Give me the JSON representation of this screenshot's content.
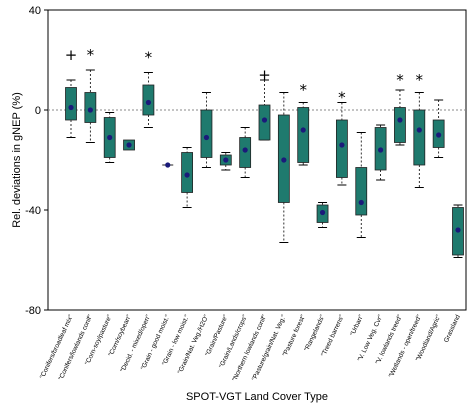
{
  "chart_data": {
    "type": "box",
    "xlabel": "SPOT-VGT Land Cover Type",
    "ylabel": "Rel. deviations in gNEP (%)",
    "ylim": [
      -80,
      40
    ],
    "yticks": [
      "40",
      "0",
      "-40",
      "-80"
    ],
    "zero_line": "dotted",
    "box_color": "#1f7a6e",
    "median_color": "#1a1a7a",
    "categories": [
      "\"Conifers/broadleaf mix\"",
      "\"Conifers/lowlands conif\"",
      "\"Corn-soy/pasture\"",
      "\"Corn/soybean\"",
      "\"Decid. - mixed/open\"",
      "\"Grain - good moist.\"",
      "\"Grain - low moist.\"",
      "\"Grain/Nat. Veg./H2O\"",
      "\"Grain/Pasture\"",
      "\"Grain/Lands/crops\"",
      "\"Northern lowlands conif\"",
      "\"Pasture/grain/Nat. Veg.\"",
      "\"Pasture forest\"",
      "\"Rangelands\"",
      "\"Treed barrens\"",
      "\"Urban\"",
      "\"V. Low Veg. Cvr\"",
      "\"V. lowlands treed\"",
      "\"Wetlands - open/treed\"",
      "\"Woodland/Agric\"",
      "Grassland"
    ],
    "series": [
      {
        "min": [
          -11,
          -13,
          -21,
          null,
          -7,
          null,
          -39,
          -23,
          -24,
          -27,
          -12,
          -53,
          -22,
          -47,
          -30,
          -51,
          -28,
          -14,
          -31,
          -19,
          -59
        ],
        "q1": [
          -4,
          -5,
          -19,
          -16,
          -2,
          null,
          -33,
          -19,
          -22,
          -23,
          -12,
          -37,
          -21,
          -45,
          -27,
          -42,
          -24,
          -13,
          -22,
          -15,
          -58
        ],
        "median": [
          1,
          0,
          -11,
          -14,
          3,
          -22,
          -26,
          -11,
          -20,
          -16,
          -4,
          -20,
          -8,
          -41,
          -14,
          -37,
          -16,
          -4,
          -8,
          -10,
          -48
        ],
        "q3": [
          9,
          7,
          -3,
          -12,
          10,
          null,
          -17,
          0,
          -18,
          -11,
          2,
          -2,
          1,
          -38,
          -4,
          -23,
          -7,
          1,
          0,
          -4,
          -39
        ],
        "max": [
          12,
          16,
          -1,
          null,
          15,
          null,
          -15,
          7,
          -17,
          -7,
          12,
          7,
          3,
          -37,
          3,
          -9,
          -6,
          8,
          7,
          4,
          -38
        ]
      }
    ],
    "significance": [
      {
        "category_index": 0,
        "symbol": "+",
        "y": 22
      },
      {
        "category_index": 1,
        "symbol": "*",
        "y": 22
      },
      {
        "category_index": 4,
        "symbol": "*",
        "y": 21
      },
      {
        "category_index": 10,
        "symbol": "+",
        "y": 14
      },
      {
        "category_index": 12,
        "symbol": "*",
        "y": 8
      },
      {
        "category_index": 14,
        "symbol": "*",
        "y": 5
      },
      {
        "category_index": 17,
        "symbol": "*",
        "y": 12
      },
      {
        "category_index": 18,
        "symbol": "*",
        "y": 12
      }
    ]
  }
}
